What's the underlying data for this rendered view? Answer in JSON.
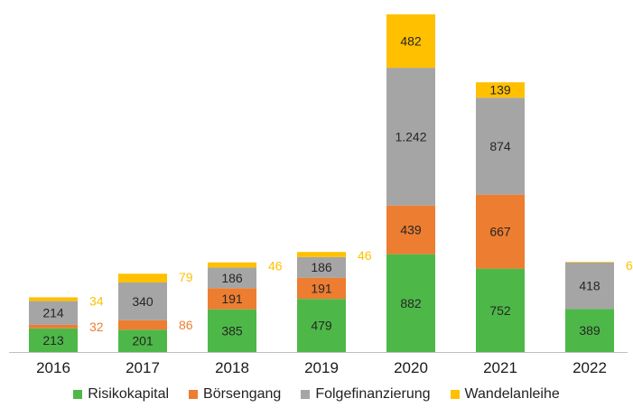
{
  "chart_data": {
    "type": "bar",
    "stacked": true,
    "categories": [
      "2016",
      "2017",
      "2018",
      "2019",
      "2020",
      "2021",
      "2022"
    ],
    "series": [
      {
        "name": "Risikokapital",
        "color": "#4db848",
        "values": [
          213,
          201,
          385,
          479,
          882,
          752,
          389
        ],
        "labels": [
          "213",
          "201",
          "385",
          "479",
          "882",
          "752",
          "389"
        ]
      },
      {
        "name": "Börsengang",
        "color": "#ed7d31",
        "values": [
          32,
          86,
          191,
          191,
          439,
          667,
          0
        ],
        "labels": [
          "32",
          "86",
          "191",
          "191",
          "439",
          "667",
          ""
        ]
      },
      {
        "name": "Folgefinanzierung",
        "color": "#a5a5a5",
        "values": [
          214,
          340,
          186,
          186,
          1242,
          874,
          418
        ],
        "labels": [
          "214",
          "340",
          "186",
          "186",
          "1.242",
          "874",
          "418"
        ]
      },
      {
        "name": "Wandelanleihe",
        "color": "#ffc000",
        "values": [
          34,
          79,
          46,
          46,
          482,
          139,
          6
        ],
        "labels": [
          "34",
          "79",
          "46",
          "46",
          "482",
          "139",
          "6"
        ]
      }
    ],
    "ylim": [
      0,
      3060
    ],
    "grid": false,
    "legend_position": "bottom"
  }
}
